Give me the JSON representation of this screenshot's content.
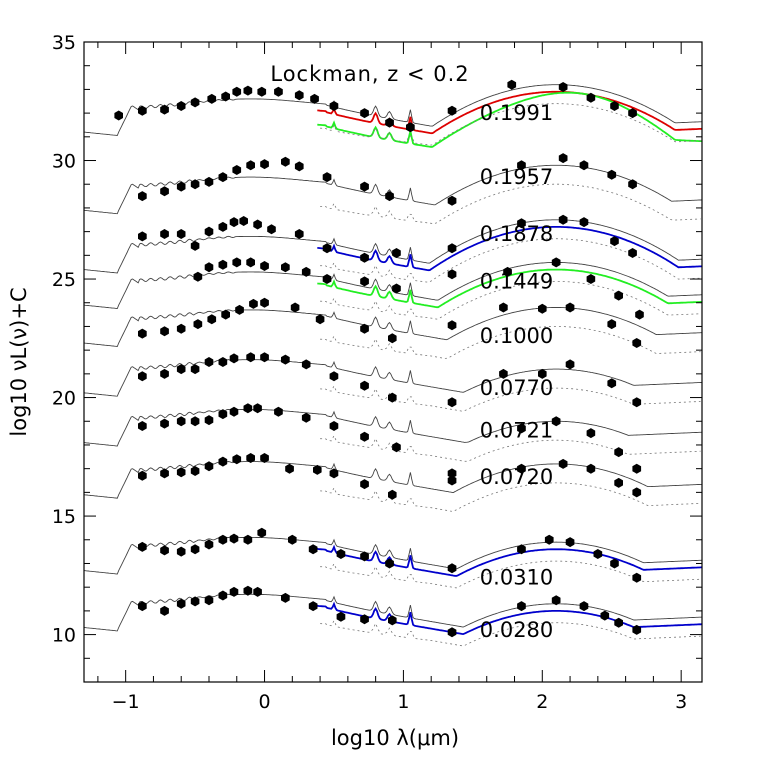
{
  "chart_data": {
    "type": "line",
    "title": "Lockman, z < 0.2",
    "xlabel": "log10 λ(μm)",
    "ylabel": "log10 νL(ν)+C",
    "xlim": [
      -1.3,
      3.15
    ],
    "ylim": [
      8,
      35
    ],
    "xticks": [
      -1,
      0,
      1,
      2,
      3
    ],
    "xtick_labels": [
      "−1",
      "0",
      "1",
      "2",
      "3"
    ],
    "yticks": [
      10,
      15,
      20,
      25,
      30,
      35
    ],
    "ytick_labels": [
      "10",
      "15",
      "20",
      "25",
      "30",
      "35"
    ],
    "grid": false,
    "legend": "none",
    "colors": {
      "observed_points": "#000000",
      "template_gray": "#555555",
      "red_component": "#dd0000",
      "green_component": "#22ee22",
      "blue_component": "#0000cc"
    },
    "series": [
      {
        "name": "0.1991",
        "offset": 32.6,
        "points": [
          [
            -1.05,
            31.9
          ],
          [
            -0.88,
            32.1
          ],
          [
            -0.72,
            32.15
          ],
          [
            -0.6,
            32.3
          ],
          [
            -0.5,
            32.45
          ],
          [
            -0.38,
            32.6
          ],
          [
            -0.28,
            32.7
          ],
          [
            -0.2,
            32.9
          ],
          [
            -0.12,
            32.95
          ],
          [
            -0.02,
            32.9
          ],
          [
            0.1,
            32.9
          ],
          [
            0.25,
            32.75
          ],
          [
            0.36,
            32.6
          ],
          [
            0.5,
            32.3
          ],
          [
            0.72,
            32.0
          ],
          [
            0.9,
            31.6
          ],
          [
            1.05,
            31.4
          ],
          [
            1.35,
            32.1
          ],
          [
            1.78,
            33.2
          ],
          [
            2.15,
            33.1
          ],
          [
            2.35,
            32.65
          ],
          [
            2.52,
            32.3
          ],
          [
            2.65,
            32.0
          ]
        ],
        "model_color": "#dd0000",
        "extra_color": "#22ee22",
        "dust_peak": 33.2
      },
      {
        "name": "0.1957",
        "offset": 29.3,
        "points": [
          [
            -0.88,
            28.5
          ],
          [
            -0.72,
            28.7
          ],
          [
            -0.6,
            28.9
          ],
          [
            -0.5,
            29.0
          ],
          [
            -0.4,
            29.1
          ],
          [
            -0.3,
            29.3
          ],
          [
            -0.2,
            29.6
          ],
          [
            -0.1,
            29.8
          ],
          [
            0.0,
            29.85
          ],
          [
            0.15,
            29.95
          ],
          [
            0.25,
            29.75
          ],
          [
            0.45,
            29.3
          ],
          [
            0.72,
            28.9
          ],
          [
            0.9,
            28.5
          ],
          [
            1.35,
            28.3
          ],
          [
            1.85,
            29.8
          ],
          [
            2.15,
            30.1
          ],
          [
            2.3,
            29.8
          ],
          [
            2.5,
            29.4
          ],
          [
            2.65,
            29.0
          ]
        ],
        "model_color": "#444444",
        "dust_peak": 29.8
      },
      {
        "name": "0.1878",
        "offset": 26.8,
        "points": [
          [
            -0.88,
            26.8
          ],
          [
            -0.72,
            26.9
          ],
          [
            -0.6,
            26.9
          ],
          [
            -0.5,
            26.4
          ],
          [
            -0.4,
            27.0
          ],
          [
            -0.3,
            27.2
          ],
          [
            -0.22,
            27.4
          ],
          [
            -0.15,
            27.45
          ],
          [
            -0.05,
            27.3
          ],
          [
            0.05,
            27.1
          ],
          [
            0.25,
            26.9
          ],
          [
            0.45,
            26.3
          ],
          [
            0.72,
            25.9
          ],
          [
            0.95,
            26.1
          ],
          [
            1.35,
            26.3
          ],
          [
            1.85,
            27.35
          ],
          [
            2.15,
            27.5
          ],
          [
            2.3,
            27.4
          ],
          [
            2.52,
            26.6
          ],
          [
            2.65,
            26.1
          ]
        ],
        "model_color": "#0000cc",
        "dust_peak": 27.5
      },
      {
        "name": "0.1449",
        "offset": 25.3,
        "points": [
          [
            -0.48,
            25.1
          ],
          [
            -0.4,
            25.5
          ],
          [
            -0.3,
            25.6
          ],
          [
            -0.2,
            25.7
          ],
          [
            -0.1,
            25.7
          ],
          [
            0.0,
            25.55
          ],
          [
            0.15,
            25.5
          ],
          [
            0.3,
            25.3
          ],
          [
            0.45,
            25.0
          ],
          [
            0.72,
            24.9
          ],
          [
            0.95,
            24.6
          ],
          [
            1.35,
            25.2
          ],
          [
            1.75,
            25.3
          ],
          [
            2.1,
            25.7
          ],
          [
            2.35,
            25.0
          ],
          [
            2.55,
            24.3
          ],
          [
            2.7,
            23.5
          ]
        ],
        "model_color": "#22ee22",
        "dust_peak": 25.7
      },
      {
        "name": "0.1000",
        "offset": 23.7,
        "points": [
          [
            -0.88,
            22.7
          ],
          [
            -0.72,
            22.8
          ],
          [
            -0.6,
            22.9
          ],
          [
            -0.48,
            23.1
          ],
          [
            -0.38,
            23.3
          ],
          [
            -0.28,
            23.5
          ],
          [
            -0.18,
            23.7
          ],
          [
            -0.08,
            23.95
          ],
          [
            0.0,
            24.0
          ],
          [
            0.22,
            23.8
          ],
          [
            0.4,
            23.3
          ],
          [
            0.72,
            22.9
          ],
          [
            0.92,
            22.5
          ],
          [
            1.35,
            23.05
          ],
          [
            1.72,
            23.8
          ],
          [
            2.0,
            23.75
          ],
          [
            2.2,
            23.8
          ],
          [
            2.5,
            23.1
          ],
          [
            2.68,
            22.3
          ]
        ],
        "model_color": "#444444",
        "dust_peak": 23.8
      },
      {
        "name": "0.0770",
        "offset": 21.6,
        "points": [
          [
            -0.88,
            20.9
          ],
          [
            -0.72,
            21.0
          ],
          [
            -0.6,
            21.2
          ],
          [
            -0.5,
            21.2
          ],
          [
            -0.4,
            21.5
          ],
          [
            -0.3,
            21.5
          ],
          [
            -0.22,
            21.65
          ],
          [
            -0.1,
            21.7
          ],
          [
            0.0,
            21.7
          ],
          [
            0.15,
            21.6
          ],
          [
            0.3,
            21.4
          ],
          [
            0.5,
            20.9
          ],
          [
            0.72,
            20.5
          ],
          [
            0.92,
            20.0
          ],
          [
            1.35,
            19.8
          ],
          [
            1.72,
            21.0
          ],
          [
            2.0,
            21.0
          ],
          [
            2.2,
            21.4
          ],
          [
            2.5,
            20.6
          ],
          [
            2.68,
            19.8
          ]
        ],
        "model_color": "#444444",
        "dust_peak": 21.2
      },
      {
        "name": "0.0721",
        "offset": 19.5,
        "points": [
          [
            -0.88,
            18.8
          ],
          [
            -0.72,
            18.9
          ],
          [
            -0.6,
            19.0
          ],
          [
            -0.5,
            19.0
          ],
          [
            -0.4,
            19.05
          ],
          [
            -0.3,
            19.3
          ],
          [
            -0.22,
            19.4
          ],
          [
            -0.12,
            19.55
          ],
          [
            -0.05,
            19.55
          ],
          [
            0.1,
            19.4
          ],
          [
            0.3,
            19.15
          ],
          [
            0.5,
            18.8
          ],
          [
            0.72,
            18.35
          ],
          [
            0.95,
            17.9
          ],
          [
            1.35,
            16.5
          ],
          [
            1.85,
            18.7
          ],
          [
            2.1,
            19.0
          ],
          [
            2.35,
            18.5
          ],
          [
            2.55,
            17.7
          ],
          [
            2.68,
            17.0
          ]
        ],
        "model_color": "#444444",
        "dust_peak": 19.0
      },
      {
        "name": "0.0720",
        "offset": 17.3,
        "points": [
          [
            -0.88,
            16.7
          ],
          [
            -0.72,
            16.8
          ],
          [
            -0.6,
            16.85
          ],
          [
            -0.5,
            16.9
          ],
          [
            -0.4,
            17.1
          ],
          [
            -0.3,
            17.3
          ],
          [
            -0.2,
            17.4
          ],
          [
            -0.1,
            17.45
          ],
          [
            0.0,
            17.45
          ],
          [
            0.18,
            17.0
          ],
          [
            0.38,
            16.95
          ],
          [
            0.5,
            16.8
          ],
          [
            0.72,
            16.35
          ],
          [
            0.92,
            15.9
          ],
          [
            1.35,
            16.8
          ],
          [
            1.85,
            17.0
          ],
          [
            2.15,
            17.2
          ],
          [
            2.35,
            17.0
          ],
          [
            2.55,
            16.4
          ],
          [
            2.68,
            16.0
          ]
        ],
        "model_color": "#444444",
        "dust_peak": 17.2
      },
      {
        "name": "0.0310",
        "offset": 14.1,
        "points": [
          [
            -0.88,
            13.7
          ],
          [
            -0.72,
            13.55
          ],
          [
            -0.6,
            13.5
          ],
          [
            -0.5,
            13.6
          ],
          [
            -0.4,
            13.8
          ],
          [
            -0.3,
            14.0
          ],
          [
            -0.22,
            14.05
          ],
          [
            -0.12,
            14.0
          ],
          [
            -0.02,
            14.3
          ],
          [
            0.2,
            14.0
          ],
          [
            0.35,
            13.6
          ],
          [
            0.55,
            13.4
          ],
          [
            0.72,
            13.3
          ],
          [
            0.9,
            13.0
          ],
          [
            1.35,
            12.8
          ],
          [
            1.85,
            13.6
          ],
          [
            2.05,
            14.0
          ],
          [
            2.2,
            13.9
          ],
          [
            2.4,
            13.4
          ],
          [
            2.52,
            13.0
          ],
          [
            2.68,
            12.4
          ]
        ],
        "model_color": "#0000cc",
        "dust_peak": 13.9
      },
      {
        "name": "0.0280",
        "offset": 11.7,
        "points": [
          [
            -0.88,
            11.2
          ],
          [
            -0.72,
            11.0
          ],
          [
            -0.6,
            11.3
          ],
          [
            -0.5,
            11.4
          ],
          [
            -0.4,
            11.45
          ],
          [
            -0.3,
            11.65
          ],
          [
            -0.22,
            11.8
          ],
          [
            -0.12,
            11.85
          ],
          [
            -0.05,
            11.8
          ],
          [
            0.15,
            11.55
          ],
          [
            0.35,
            11.2
          ],
          [
            0.55,
            10.75
          ],
          [
            0.72,
            10.65
          ],
          [
            0.92,
            10.6
          ],
          [
            1.35,
            10.1
          ],
          [
            1.85,
            11.2
          ],
          [
            2.1,
            11.45
          ],
          [
            2.3,
            11.2
          ],
          [
            2.45,
            10.8
          ],
          [
            2.55,
            10.5
          ],
          [
            2.68,
            10.2
          ]
        ],
        "model_color": "#0000cc",
        "dust_peak": 11.3
      }
    ]
  }
}
